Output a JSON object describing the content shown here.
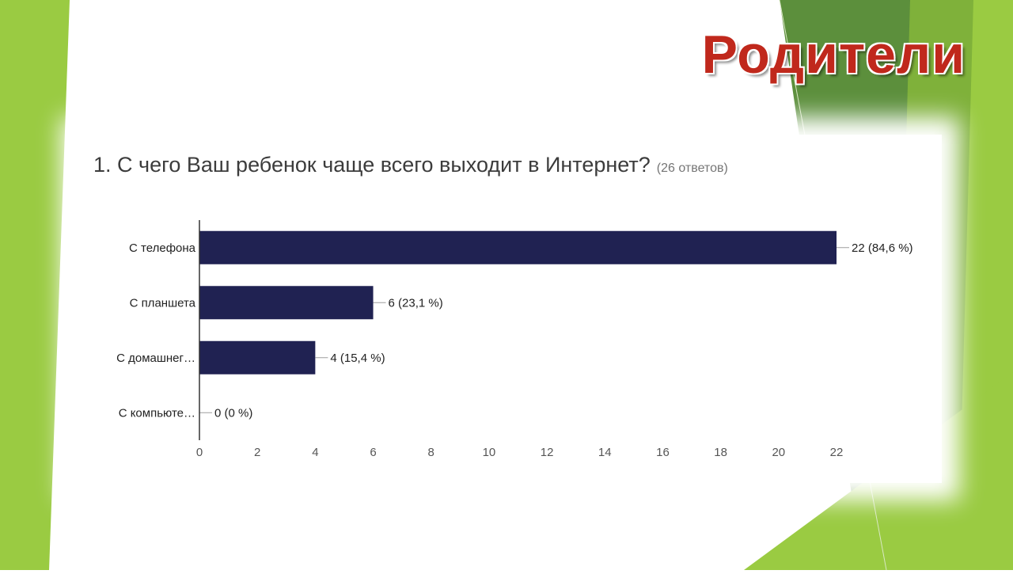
{
  "slide": {
    "title": "Родители",
    "colors": {
      "green_light": "#9acb42",
      "green_mid": "#7fb13a",
      "green_dark": "#5c8f3c",
      "title_red": "#c0281c",
      "bar": "#202252"
    }
  },
  "question": {
    "text": "1. С чего Ваш ребенок чаще всего выходит в Интернет?",
    "responses": "(26 ответов)"
  },
  "chart_data": {
    "type": "bar",
    "orientation": "horizontal",
    "categories": [
      "С телефона",
      "С планшета",
      "С домашнег…",
      "С компьюте…"
    ],
    "values": [
      22,
      6,
      4,
      0
    ],
    "data_labels": [
      "22 (84,6 %)",
      "6 (23,1 %)",
      "4 (15,4 %)",
      "0 (0 %)"
    ],
    "x_ticks": [
      "0",
      "2",
      "4",
      "6",
      "8",
      "10",
      "12",
      "14",
      "16",
      "18",
      "20",
      "22"
    ],
    "xlim": [
      0,
      22
    ],
    "grid": false,
    "bar_color": "#202252"
  }
}
